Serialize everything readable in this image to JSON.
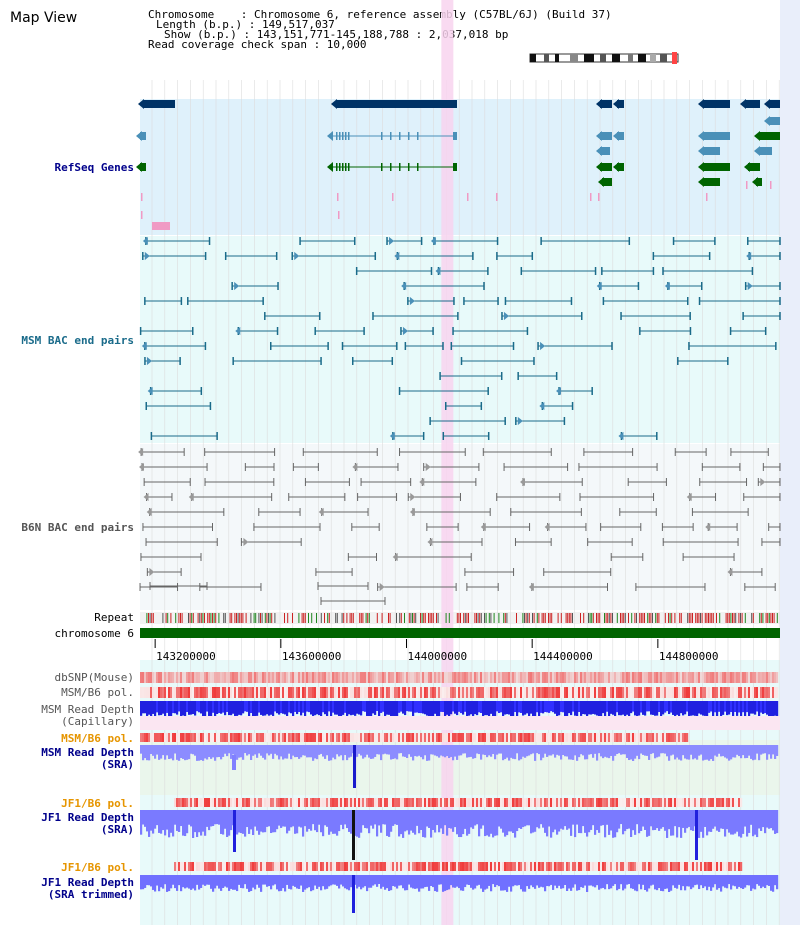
{
  "title": "Map View",
  "info": {
    "chromosome": "Chromosome    : Chromosome 6, reference assembly (C57BL/6J) (Build 37)",
    "length": "Length (b.p.) : 149,517,037",
    "show": "Show (b.p.) : 143,151,771-145,188,788 : 2,037,018 bp",
    "coverage": "Read coverage check span : 10,000"
  },
  "view": {
    "start": 143151771,
    "end": 145188788,
    "highlight_center": 144130000
  },
  "tracks": {
    "refseq": "RefSeq Genes",
    "msm_bac": "MSM BAC end pairs",
    "b6n_bac": "B6N BAC end pairs",
    "repeat": "Repeat",
    "chromosome": "chromosome 6",
    "dbsnp": "dbSNP(Mouse)",
    "msm_pol": "MSM/B6 pol.",
    "msm_depth_cap_1": "MSM Read Depth",
    "msm_depth_cap_2": "(Capillary)",
    "msm_pol_2": "MSM/B6 pol.",
    "msm_depth_sra_1": "MSM Read Depth",
    "msm_depth_sra_2": "(SRA)",
    "jf1_pol": "JF1/B6 pol.",
    "jf1_depth_sra_1": "JF1 Read Depth",
    "jf1_depth_sra_2": "(SRA)",
    "jf1_pol_2": "JF1/B6 pol.",
    "jf1_depth_trim_1": "JF1 Read Depth",
    "jf1_depth_trim_2": "(SRA trimmed)"
  },
  "axis_ticks": [
    {
      "pos": 143200000,
      "label": "143200000"
    },
    {
      "pos": 143600000,
      "label": "143600000"
    },
    {
      "pos": 144000000,
      "label": "144000000"
    },
    {
      "pos": 144400000,
      "label": "144400000"
    },
    {
      "pos": 144800000,
      "label": "144800000"
    }
  ],
  "colors": {
    "refseq_bg": "#dff1fb",
    "msm_bg": "#e8fafa",
    "b6n_bg": "#f4f8fa",
    "highlight": "#f8d4ee",
    "chromosome_bar": "#006400",
    "gene_dark": "#003366",
    "gene_light": "#4a90b8",
    "gene_green": "#006400",
    "msm_pair": "#1a6b8a",
    "b6n_pair": "#666666"
  }
}
